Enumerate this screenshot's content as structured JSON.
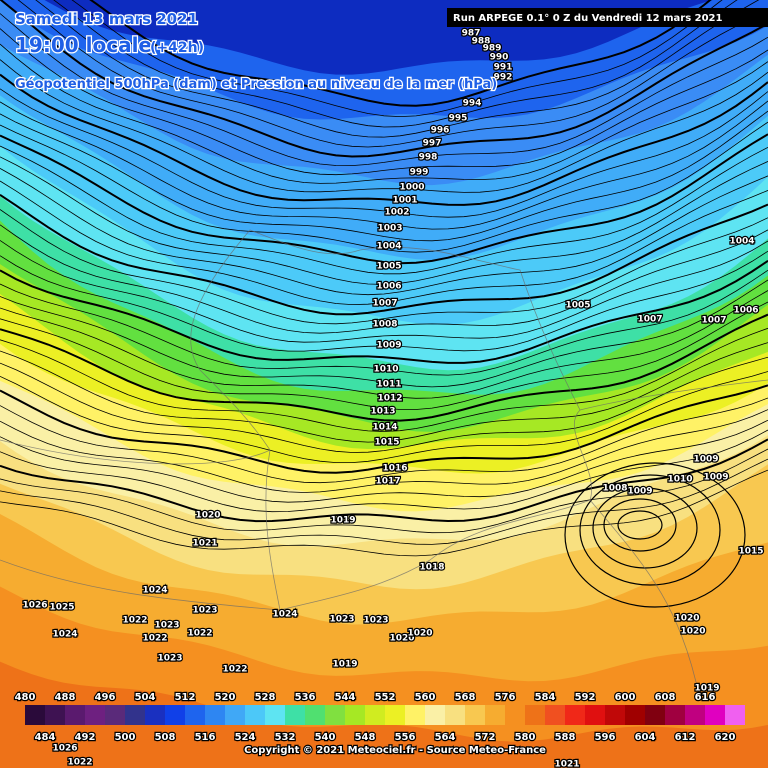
{
  "header": {
    "date": "Samedi 13 mars 2021",
    "time": "19:00 locale",
    "lead": "(+42h)",
    "subtitle": "Géopotentiel 500hPa (dam) et Pression au niveau de la mer (hPa)",
    "run": "Run ARPEGE 0.1° 0 Z du Vendredi 12 mars 2021"
  },
  "legend": {
    "top_labels": [
      480,
      488,
      496,
      504,
      512,
      520,
      528,
      536,
      544,
      552,
      560,
      568,
      576,
      584,
      592,
      600,
      608,
      616
    ],
    "bottom_labels": [
      484,
      492,
      500,
      508,
      516,
      524,
      532,
      540,
      548,
      556,
      564,
      572,
      580,
      588,
      596,
      604,
      612,
      620
    ]
  },
  "isobar_labels": [
    987,
    988,
    989,
    990,
    991,
    992,
    994,
    995,
    996,
    997,
    998,
    999,
    1000,
    1001,
    1002,
    1003,
    1004,
    1005,
    1006,
    1007,
    1008,
    1009,
    1010,
    1011,
    1012,
    1013,
    1014,
    1015,
    1016,
    1017,
    1019,
    1020,
    1021,
    1018,
    1024,
    1023,
    1022,
    1023,
    1022,
    1022,
    1023,
    1022,
    1026,
    1025,
    1024,
    1024,
    1023,
    1023,
    1020,
    1020,
    1019,
    1004,
    1005,
    1006,
    1007,
    1007,
    1009,
    1010,
    1009,
    1008,
    1009,
    1015,
    1020,
    1020,
    1019,
    1021,
    1022,
    1026
  ],
  "copyright": "Copyright © 2021 Meteociel.fr - Source Meteo-France"
}
